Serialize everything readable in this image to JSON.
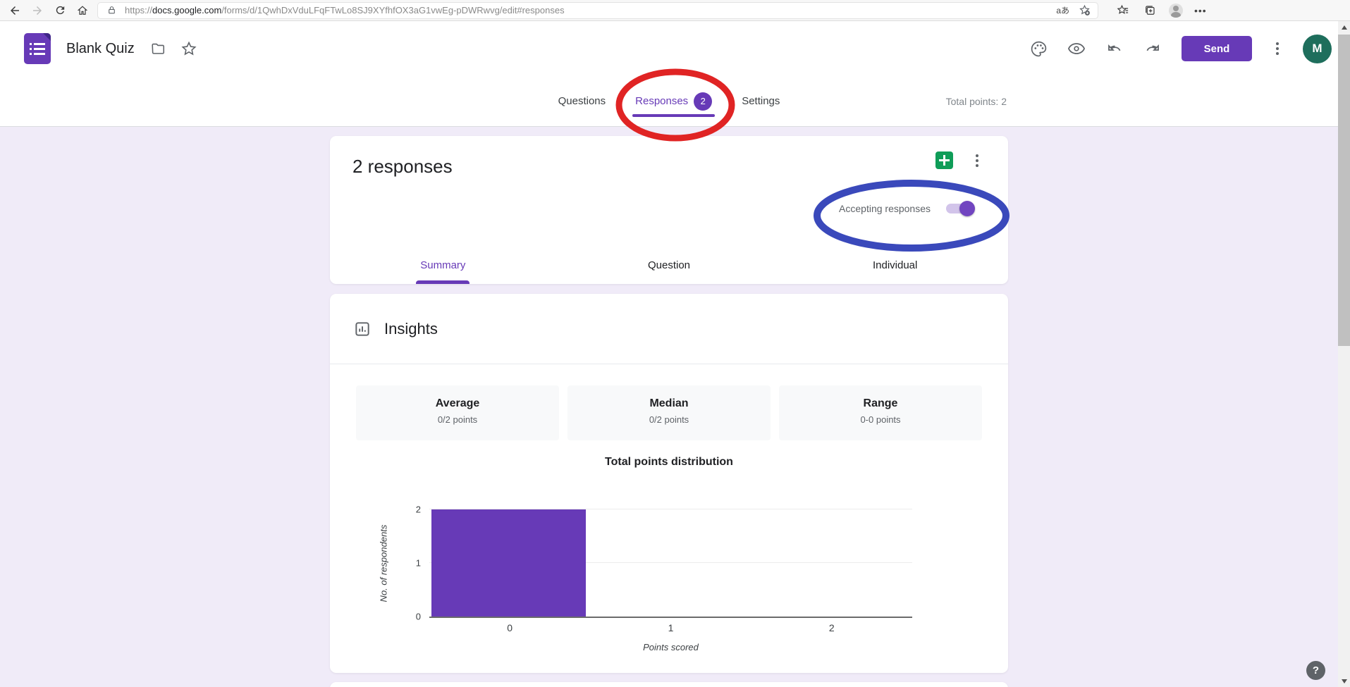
{
  "browser": {
    "url_scheme": "https://",
    "url_domain": "docs.google.com",
    "url_path": "/forms/d/1QwhDxVduLFqFTwLo8SJ9XYfhfOX3aG1vwEg-pDWRwvg/edit#responses",
    "translate_label": "aあ"
  },
  "header": {
    "title": "Blank Quiz",
    "send_label": "Send",
    "avatar_initial": "M"
  },
  "nav": {
    "tabs": [
      {
        "label": "Questions",
        "active": false
      },
      {
        "label": "Responses",
        "active": true,
        "badge": "2"
      },
      {
        "label": "Settings",
        "active": false
      }
    ],
    "total_points": "Total points: 2"
  },
  "responses_card": {
    "title": "2 responses",
    "accepting_label": "Accepting responses",
    "toggle_on": true,
    "subtabs": [
      {
        "label": "Summary",
        "active": true
      },
      {
        "label": "Question",
        "active": false
      },
      {
        "label": "Individual",
        "active": false
      }
    ]
  },
  "insights_card": {
    "title": "Insights",
    "stats": [
      {
        "label": "Average",
        "value": "0/2 points"
      },
      {
        "label": "Median",
        "value": "0/2 points"
      },
      {
        "label": "Range",
        "value": "0-0 points"
      }
    ]
  },
  "chart_data": {
    "type": "bar",
    "title": "Total points distribution",
    "categories": [
      "0",
      "1",
      "2"
    ],
    "values": [
      2,
      0,
      0
    ],
    "xlabel": "Points scored",
    "ylabel": "No. of respondents",
    "yticks": [
      0,
      1,
      2
    ],
    "ylim": [
      0,
      2
    ],
    "bar_color": "#673ab7",
    "grid": true,
    "legend": false
  },
  "annotations": {
    "red_ellipse_target": "responses-tab",
    "blue_ellipse_target": "accepting-responses-toggle",
    "red_color": "#e02424",
    "blue_color": "#3a49bb"
  },
  "colors": {
    "accent_purple": "#673ab7",
    "page_background": "#f0ebf8",
    "sheets_green": "#0f9d58",
    "avatar_green": "#1e6e5c"
  },
  "help": {
    "label": "?"
  }
}
